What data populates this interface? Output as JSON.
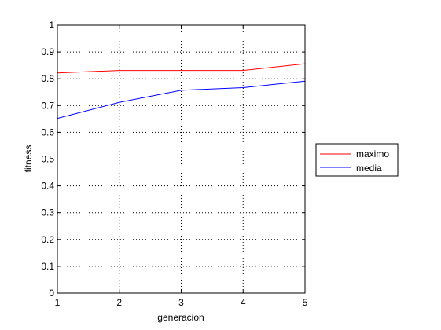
{
  "chart_data": {
    "type": "line",
    "title": "",
    "xlabel": "generacion",
    "ylabel": "fitness",
    "x": [
      1,
      2,
      3,
      4,
      5
    ],
    "xlim": [
      1,
      5
    ],
    "ylim": [
      0,
      1
    ],
    "xticks": [
      "1",
      "2",
      "3",
      "4",
      "5"
    ],
    "yticks": [
      "0",
      "0.1",
      "0.2",
      "0.3",
      "0.4",
      "0.5",
      "0.6",
      "0.7",
      "0.8",
      "0.9",
      "1"
    ],
    "grid": true,
    "legend_position": "outside-right",
    "series": [
      {
        "name": "maximo",
        "color": "#ff0000",
        "values": [
          0.822,
          0.831,
          0.831,
          0.831,
          0.856
        ]
      },
      {
        "name": "media",
        "color": "#0000ff",
        "values": [
          0.652,
          0.712,
          0.757,
          0.767,
          0.791
        ]
      }
    ]
  }
}
